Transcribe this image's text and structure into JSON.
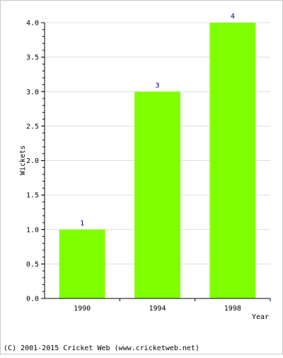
{
  "footer": {
    "credit": "(C) 2001-2015 Cricket Web (www.cricketweb.net)"
  },
  "chart_data": {
    "type": "bar",
    "title": "",
    "xlabel": "Year",
    "ylabel": "Wickets",
    "categories": [
      "1990",
      "1994",
      "1998"
    ],
    "values": [
      1,
      3,
      4
    ],
    "data_labels": [
      "1",
      "3",
      "4"
    ],
    "ylim": [
      0,
      4
    ],
    "y_ticks": [
      "0.0",
      "0.5",
      "1.0",
      "1.5",
      "2.0",
      "2.5",
      "3.0",
      "3.5",
      "4.0"
    ],
    "grid": true,
    "bar_color": "#80ff00",
    "grid_color": "#dcdcdc"
  }
}
